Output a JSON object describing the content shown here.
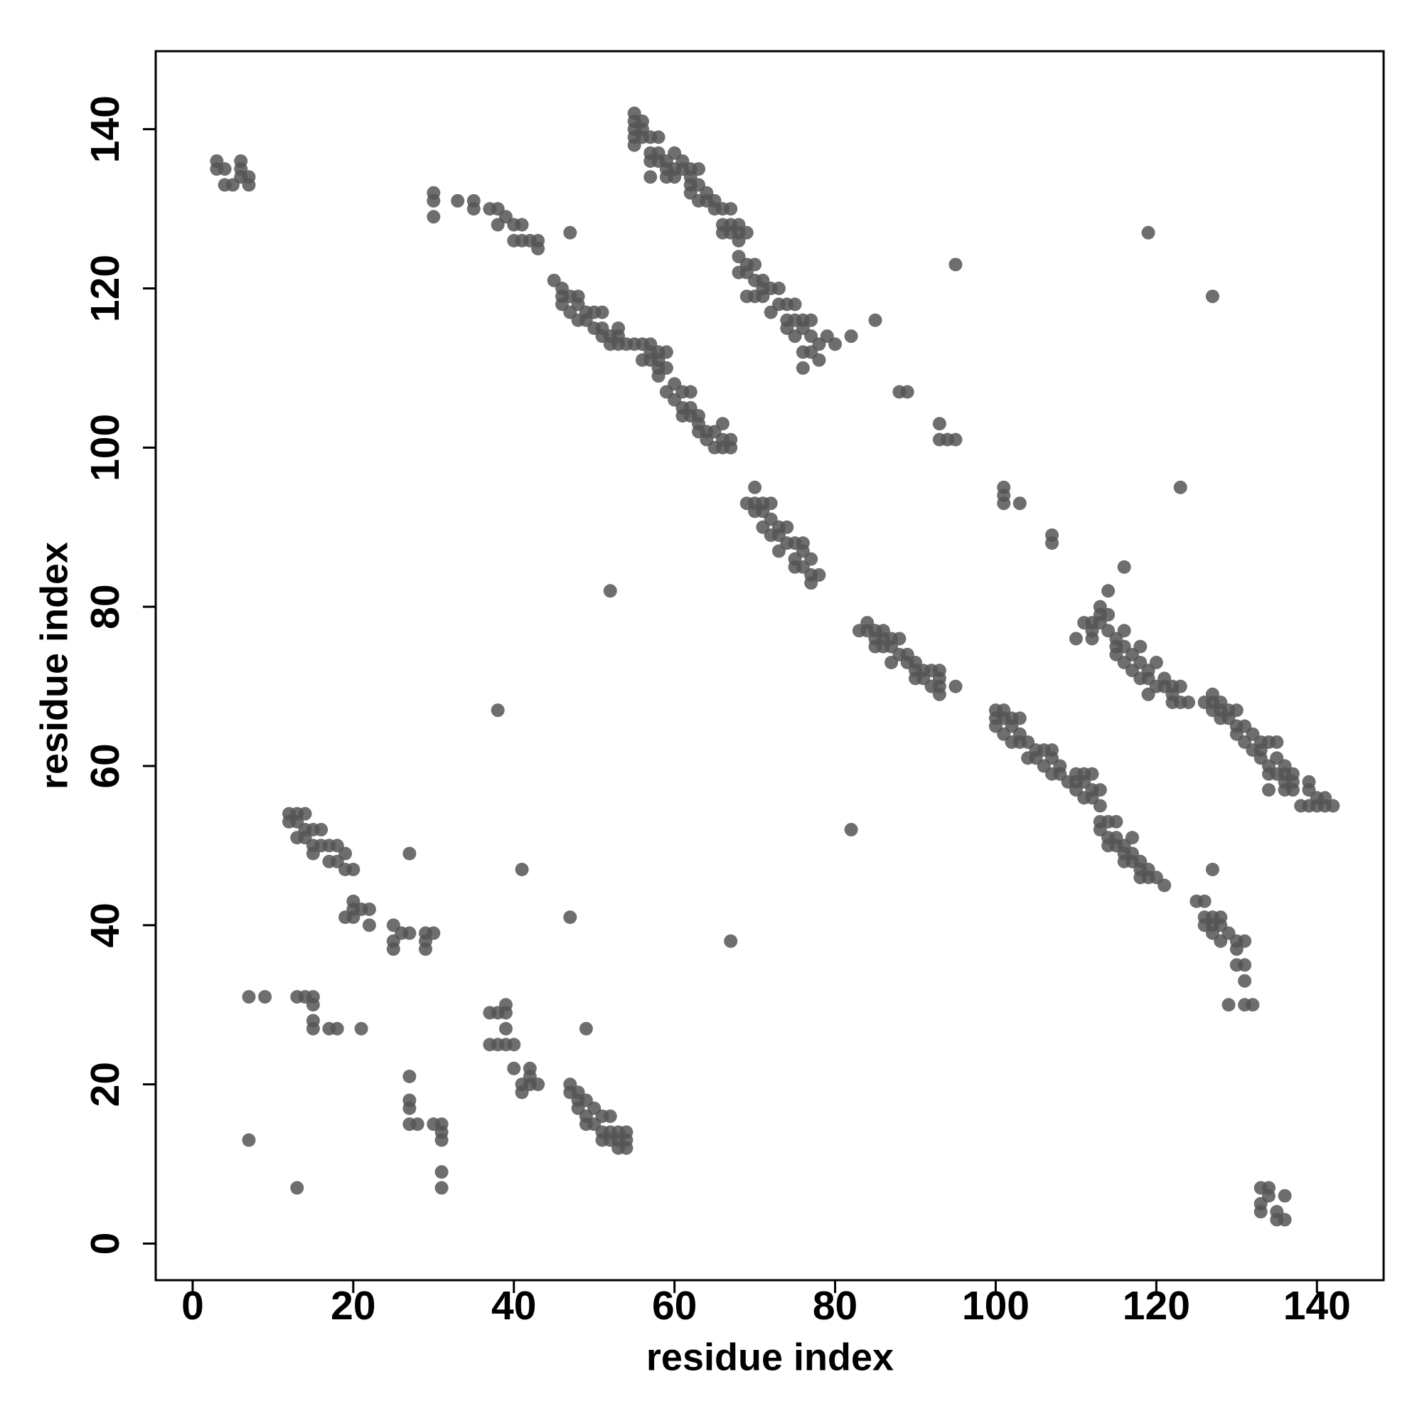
{
  "chart_data": {
    "type": "scatter",
    "x_label": "residue index",
    "y_label": "residue index",
    "color": "#555555",
    "xlim": [
      -4.6,
      148.3
    ],
    "ylim": [
      -4.6,
      149.8
    ],
    "xticks": [
      0,
      20,
      40,
      60,
      80,
      100,
      120,
      140
    ],
    "yticks": [
      0,
      20,
      40,
      60,
      80,
      100,
      120,
      140
    ],
    "x": [
      3,
      3,
      4,
      4,
      5,
      6,
      6,
      7,
      7,
      6,
      30,
      30,
      30,
      33,
      35,
      35,
      37,
      38,
      38,
      39,
      40,
      40,
      41,
      41,
      42,
      43,
      43,
      47,
      55,
      55,
      55,
      55,
      55,
      56,
      56,
      56,
      57,
      57,
      57,
      57,
      58,
      58,
      58,
      59,
      59,
      59,
      60,
      60,
      60,
      61,
      61,
      62,
      62,
      62,
      62,
      63,
      63,
      63,
      64,
      64,
      65,
      65,
      66,
      66,
      66,
      67,
      67,
      67,
      68,
      68,
      68,
      69,
      68,
      68,
      69,
      69,
      69,
      70,
      70,
      70,
      71,
      71,
      71,
      72,
      72,
      73,
      73,
      74,
      74,
      74,
      75,
      75,
      75,
      76,
      76,
      76,
      76,
      77,
      77,
      77,
      78,
      78,
      79,
      80,
      82,
      85,
      45,
      46,
      46,
      46,
      47,
      47,
      48,
      48,
      48,
      49,
      49,
      50,
      50,
      51,
      51,
      51,
      52,
      52,
      53,
      53,
      53,
      54,
      55,
      56,
      56,
      57,
      57,
      57,
      58,
      58,
      58,
      58,
      59,
      59,
      59,
      60,
      60,
      61,
      61,
      61,
      62,
      62,
      62,
      63,
      63,
      63,
      64,
      64,
      65,
      65,
      66,
      66,
      66,
      67,
      67,
      69,
      70,
      70,
      70,
      71,
      71,
      71,
      72,
      72,
      72,
      73,
      73,
      73,
      74,
      74,
      75,
      75,
      75,
      76,
      76,
      76,
      77,
      77,
      77,
      78,
      88,
      89,
      93,
      93,
      94,
      95,
      95,
      101,
      101,
      101,
      103,
      107,
      107,
      116,
      119,
      123,
      127,
      82,
      52,
      38,
      67,
      47,
      41,
      27,
      49,
      83,
      84,
      84,
      85,
      85,
      85,
      86,
      86,
      86,
      87,
      87,
      87,
      88,
      88,
      89,
      89,
      90,
      90,
      90,
      91,
      91,
      92,
      92,
      93,
      93,
      93,
      93,
      95,
      100,
      100,
      100,
      101,
      101,
      101,
      102,
      102,
      102,
      103,
      103,
      103,
      104,
      104,
      105,
      105,
      106,
      106,
      107,
      107,
      107,
      108,
      108,
      109,
      110,
      110,
      110,
      111,
      111,
      111,
      112,
      112,
      112,
      113,
      113,
      113,
      113,
      114,
      114,
      114,
      115,
      115,
      115,
      116,
      116,
      116,
      117,
      117,
      117,
      118,
      118,
      118,
      119,
      119,
      120,
      121,
      110,
      111,
      112,
      112,
      112,
      113,
      113,
      113,
      114,
      114,
      114,
      115,
      115,
      115,
      116,
      116,
      116,
      117,
      117,
      118,
      118,
      118,
      119,
      119,
      119,
      120,
      120,
      121,
      121,
      122,
      122,
      122,
      123,
      123,
      124,
      126,
      127,
      127,
      127,
      128,
      128,
      128,
      129,
      129,
      130,
      130,
      130,
      131,
      131,
      132,
      132,
      133,
      133,
      133,
      134,
      134,
      134,
      134,
      135,
      135,
      135,
      136,
      136,
      136,
      136,
      137,
      137,
      137,
      138,
      139,
      139,
      139,
      140,
      140,
      141,
      141,
      142,
      127,
      125,
      126,
      126,
      126,
      127,
      127,
      127,
      128,
      128,
      128,
      129,
      130,
      130,
      130,
      131,
      131,
      131,
      131,
      129,
      132,
      133,
      133,
      133,
      134,
      134,
      135,
      135,
      136,
      136,
      12,
      12,
      13,
      13,
      13,
      14,
      14,
      14,
      15,
      15,
      15,
      16,
      16,
      17,
      17,
      18,
      18,
      19,
      19,
      20,
      19,
      20,
      20,
      20,
      21,
      22,
      22,
      25,
      25,
      25,
      26,
      27,
      29,
      29,
      29,
      30,
      7,
      9,
      13,
      14,
      15,
      15,
      15,
      15,
      17,
      18,
      21,
      7,
      13,
      27,
      27,
      27,
      27,
      28,
      30,
      31,
      31,
      31,
      31,
      31,
      37,
      37,
      38,
      38,
      39,
      39,
      39,
      39,
      40,
      40,
      41,
      41,
      42,
      42,
      42,
      43,
      47,
      47,
      48,
      48,
      48,
      49,
      49,
      49,
      50,
      50,
      51,
      51,
      51,
      52,
      52,
      52,
      53,
      53,
      53,
      54,
      54,
      54
    ],
    "values": [
      136,
      135,
      135,
      133,
      133,
      136,
      135,
      134,
      133,
      134,
      132,
      131,
      129,
      131,
      131,
      130,
      130,
      130,
      128,
      129,
      128,
      126,
      128,
      126,
      126,
      126,
      125,
      127,
      142,
      141,
      140,
      139,
      138,
      141,
      140,
      139,
      139,
      137,
      136,
      134,
      139,
      137,
      136,
      136,
      135,
      134,
      137,
      135,
      134,
      136,
      135,
      135,
      134,
      133,
      132,
      135,
      133,
      131,
      132,
      131,
      131,
      130,
      130,
      128,
      127,
      130,
      128,
      127,
      128,
      127,
      126,
      127,
      124,
      122,
      123,
      122,
      119,
      123,
      121,
      119,
      121,
      120,
      119,
      120,
      117,
      120,
      118,
      118,
      116,
      115,
      118,
      116,
      114,
      116,
      115,
      112,
      110,
      116,
      114,
      112,
      113,
      111,
      114,
      113,
      114,
      116,
      121,
      120,
      119,
      118,
      119,
      117,
      119,
      118,
      116,
      117,
      116,
      117,
      115,
      117,
      115,
      114,
      114,
      113,
      115,
      114,
      113,
      113,
      113,
      113,
      111,
      113,
      112,
      111,
      112,
      111,
      110,
      109,
      112,
      110,
      107,
      108,
      106,
      107,
      105,
      104,
      107,
      105,
      104,
      104,
      103,
      102,
      102,
      101,
      102,
      100,
      103,
      101,
      100,
      101,
      100,
      93,
      95,
      93,
      92,
      93,
      92,
      90,
      93,
      91,
      89,
      90,
      89,
      87,
      90,
      88,
      88,
      86,
      85,
      88,
      87,
      85,
      86,
      84,
      83,
      84,
      107,
      107,
      103,
      101,
      101,
      101,
      123,
      95,
      94,
      93,
      93,
      89,
      88,
      85,
      127,
      95,
      119,
      52,
      82,
      67,
      38,
      41,
      47,
      49,
      27,
      77,
      78,
      77,
      77,
      76,
      75,
      77,
      76,
      75,
      76,
      75,
      73,
      76,
      74,
      74,
      73,
      73,
      72,
      71,
      72,
      71,
      72,
      70,
      72,
      71,
      70,
      69,
      70,
      67,
      66,
      65,
      67,
      66,
      64,
      66,
      65,
      63,
      66,
      64,
      63,
      63,
      61,
      62,
      61,
      62,
      60,
      62,
      61,
      59,
      60,
      59,
      58,
      59,
      58,
      57,
      59,
      58,
      56,
      59,
      57,
      56,
      57,
      55,
      53,
      52,
      53,
      51,
      50,
      53,
      51,
      50,
      50,
      49,
      48,
      51,
      49,
      48,
      48,
      47,
      46,
      47,
      46,
      46,
      45,
      76,
      78,
      78,
      77,
      76,
      80,
      79,
      78,
      82,
      79,
      77,
      76,
      75,
      74,
      77,
      75,
      73,
      74,
      72,
      75,
      73,
      71,
      72,
      71,
      69,
      73,
      70,
      71,
      70,
      70,
      69,
      68,
      70,
      68,
      68,
      68,
      69,
      68,
      67,
      68,
      67,
      66,
      67,
      66,
      67,
      65,
      64,
      65,
      63,
      64,
      62,
      63,
      62,
      61,
      63,
      60,
      59,
      57,
      63,
      61,
      59,
      60,
      59,
      58,
      57,
      59,
      58,
      57,
      55,
      58,
      57,
      55,
      56,
      55,
      56,
      55,
      55,
      47,
      43,
      43,
      41,
      40,
      41,
      40,
      39,
      41,
      40,
      38,
      39,
      38,
      37,
      35,
      38,
      35,
      33,
      30,
      30,
      30,
      7,
      5,
      4,
      7,
      6,
      4,
      3,
      6,
      3,
      54,
      53,
      54,
      53,
      51,
      54,
      52,
      51,
      52,
      50,
      49,
      52,
      50,
      50,
      48,
      50,
      48,
      49,
      47,
      47,
      41,
      43,
      42,
      41,
      42,
      42,
      40,
      40,
      38,
      37,
      39,
      39,
      39,
      38,
      37,
      39,
      31,
      31,
      31,
      31,
      31,
      30,
      28,
      27,
      27,
      27,
      27,
      13,
      7,
      21,
      18,
      17,
      15,
      15,
      15,
      15,
      14,
      13,
      9,
      7,
      29,
      25,
      29,
      25,
      30,
      29,
      27,
      25,
      25,
      22,
      20,
      19,
      22,
      21,
      20,
      20,
      20,
      19,
      19,
      18,
      17,
      18,
      16,
      15,
      17,
      15,
      16,
      14,
      13,
      16,
      14,
      13,
      14,
      13,
      12,
      14,
      13,
      12
    ]
  }
}
